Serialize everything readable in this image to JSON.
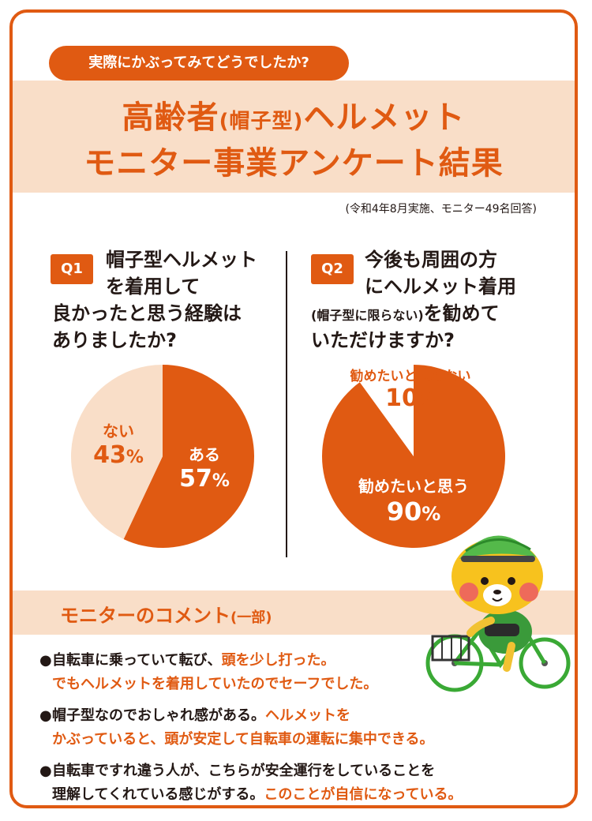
{
  "header": {
    "bubble": "実際にかぶってみてどうでしたか?",
    "title_line1_a": "高齢者",
    "title_line1_b": "(帽子型)",
    "title_line1_c": "ヘルメット",
    "title_line2": "モニター事業アンケート結果",
    "note": "(令和4年8月実施、モニター49名回答)"
  },
  "questions": [
    {
      "tag": "Q1",
      "lines": [
        "帽子型ヘルメット",
        "を着用して",
        "良かったと思う経験は",
        "ありましたか?"
      ]
    },
    {
      "tag": "Q2",
      "lines": [
        "今後も周囲の方",
        "にヘルメット着用"
      ],
      "line3_small": "(帽子型に限らない)",
      "line3_rest": "を勧めて",
      "line4": "いただけますか?"
    }
  ],
  "chart_data": [
    {
      "type": "pie",
      "title": "帽子型ヘルメットを着用して良かったと思う経験はありましたか?",
      "slices": [
        {
          "label": "ある",
          "value": 57,
          "color": "#e05a12"
        },
        {
          "label": "ない",
          "value": 43,
          "color": "#f9dec8"
        }
      ]
    },
    {
      "type": "pie",
      "title": "今後も周囲の方にヘルメット着用(帽子型に限らない)を勧めていただけますか?",
      "slices": [
        {
          "label": "勧めたいと思う",
          "value": 90,
          "color": "#e05a12"
        },
        {
          "label": "勧めたいと思わない",
          "value": 10,
          "color": "#ffffff"
        }
      ]
    }
  ],
  "comments": {
    "title": "モニターのコメント",
    "title_suffix": "(一部)",
    "items": [
      {
        "l1_black": "自転車に乗っていて転び、",
        "l1_orange": "頭を少し打った。",
        "l2_orange": "でもヘルメットを着用していたのでセーフでした。"
      },
      {
        "l1_black": "帽子型なのでおしゃれ感がある。",
        "l1_orange": "ヘルメットを",
        "l2_orange": "かぶっていると、頭が安定して自転車の運転に集中できる。"
      },
      {
        "l1_black": "自転車ですれ違う人が、こちらが安全運行をしていることを",
        "l2_black": "理解してくれている感じがする。",
        "l2_orange": "このことが自信になっている。"
      }
    ]
  },
  "colors": {
    "accent": "#e05a12",
    "light": "#f9dec8",
    "text": "#231815"
  }
}
